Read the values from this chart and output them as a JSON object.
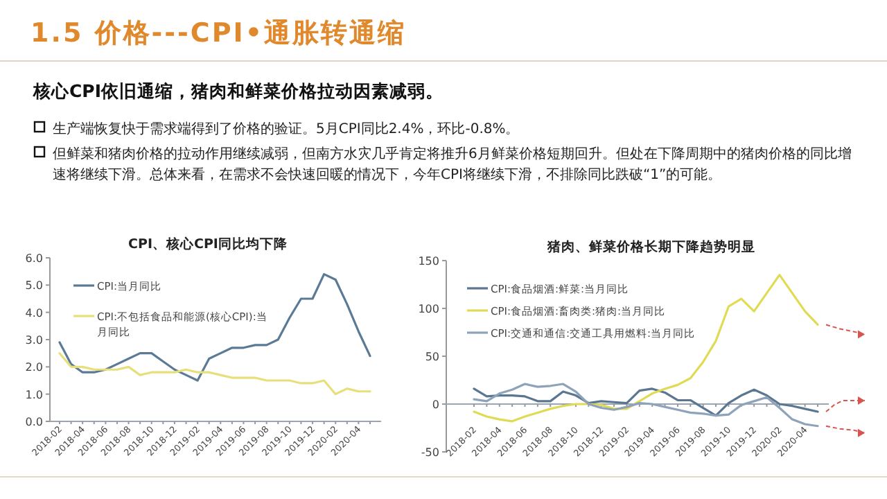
{
  "chart_data": [
    {
      "type": "other",
      "title": "1.5 价格---CPI•通胀转通缩",
      "subtitle": "核心CPI依旧通缩，猪肉和鲜菜价格拉动因素减弱。",
      "annotations": [
        "生产端恢复快于需求端得到了价格的验证。5月CPI同比2.4%，环比-0.8%。",
        "但鲜菜和猪肉价格的拉动作用继续减弱，但南方水灾几乎肯定将推升6月鲜菜价格短期回升。但处在下降周期中的猪肉价格的同比增速将继续下滑。总体来看，在需求不会快速回暖的情况下，今年CPI将继续下滑，不排除同比跌破“1”的可能。"
      ]
    },
    {
      "type": "line",
      "title": "CPI、核心CPI同比均下降",
      "legend": "top left",
      "categories": [
        "2018-02",
        null,
        "2018-04",
        null,
        "2018-06",
        null,
        "2018-08",
        null,
        "2018-10",
        null,
        "2018-12",
        null,
        "2019-02",
        null,
        "2019-04",
        null,
        "2019-06",
        null,
        "2019-08",
        null,
        "2019-10",
        null,
        "2019-12",
        null,
        "2020-02",
        null,
        "2020-04",
        null
      ],
      "ylim": [
        0,
        6
      ],
      "yticks": [
        {
          "value": 0,
          "label": "0.0"
        },
        {
          "value": 1,
          "label": "1.0"
        },
        {
          "value": 2,
          "label": "2.0"
        },
        {
          "value": 3,
          "label": "3.0"
        },
        {
          "value": 4,
          "label": "4.0"
        },
        {
          "value": 5,
          "label": "5.0"
        },
        {
          "value": 6,
          "label": "6.0"
        }
      ],
      "series": [
        {
          "name": "CPI:当月同比",
          "color": "#5b7a95",
          "values": [
            2.9,
            2.1,
            1.8,
            1.8,
            1.9,
            2.1,
            2.3,
            2.5,
            2.5,
            2.2,
            1.9,
            1.7,
            1.5,
            2.3,
            2.5,
            2.7,
            2.7,
            2.8,
            2.8,
            3.0,
            3.8,
            4.5,
            4.5,
            5.4,
            5.2,
            4.3,
            3.3,
            2.4
          ]
        },
        {
          "name": "CPI:不包括食品和能源(核心CPI):当月同比",
          "color": "#e6df7a",
          "values": [
            2.5,
            2.0,
            2.0,
            1.9,
            1.9,
            1.9,
            2.0,
            1.7,
            1.8,
            1.8,
            1.8,
            1.9,
            1.8,
            1.8,
            1.7,
            1.6,
            1.6,
            1.6,
            1.5,
            1.5,
            1.5,
            1.4,
            1.4,
            1.5,
            1.0,
            1.2,
            1.1,
            1.1
          ]
        }
      ]
    },
    {
      "type": "line",
      "title": "猪肉、鲜菜价格长期下降趋势明显",
      "legend": "top left",
      "categories": [
        "2018-02",
        null,
        "2018-04",
        null,
        "2018-06",
        null,
        "2018-08",
        null,
        "2018-10",
        null,
        "2018-12",
        null,
        "2019-02",
        null,
        "2019-04",
        null,
        "2019-06",
        null,
        "2019-08",
        null,
        "2019-10",
        null,
        "2019-12",
        null,
        "2020-02",
        null,
        "2020-04",
        null
      ],
      "ylim": [
        -50,
        150
      ],
      "yticks": [
        -50,
        0,
        50,
        100,
        150
      ],
      "series": [
        {
          "name": "CPI:食品烟酒:鲜菜:当月同比",
          "color": "#5b7690",
          "values": [
            16,
            8,
            9,
            9,
            8,
            3,
            3,
            13,
            9,
            1,
            3,
            2,
            1,
            14,
            16,
            12,
            4,
            4,
            -4,
            -12,
            1,
            9,
            15,
            9,
            0,
            -2,
            -5,
            -8
          ]
        },
        {
          "name": "CPI:食品烟酒:畜肉类:猪肉:当月同比",
          "color": "#e0db55",
          "values": [
            -8,
            -13,
            -16,
            -18,
            -13,
            -9,
            -5,
            -2,
            0,
            0,
            -1,
            -5,
            -5,
            3,
            11,
            16,
            20,
            27,
            44,
            66,
            102,
            110,
            97,
            116,
            135,
            116,
            97,
            83
          ]
        },
        {
          "name": "CPI:交通和通信:交通工具用燃料:当月同比",
          "color": "#8ea3ba",
          "values": [
            5,
            3,
            11,
            15,
            21,
            18,
            19,
            21,
            13,
            0,
            -4,
            -6,
            -3,
            1,
            0,
            -3,
            -6,
            -9,
            -10,
            -12,
            -11,
            -1,
            3,
            7,
            -4,
            -16,
            -21,
            -23
          ]
        }
      ]
    }
  ]
}
